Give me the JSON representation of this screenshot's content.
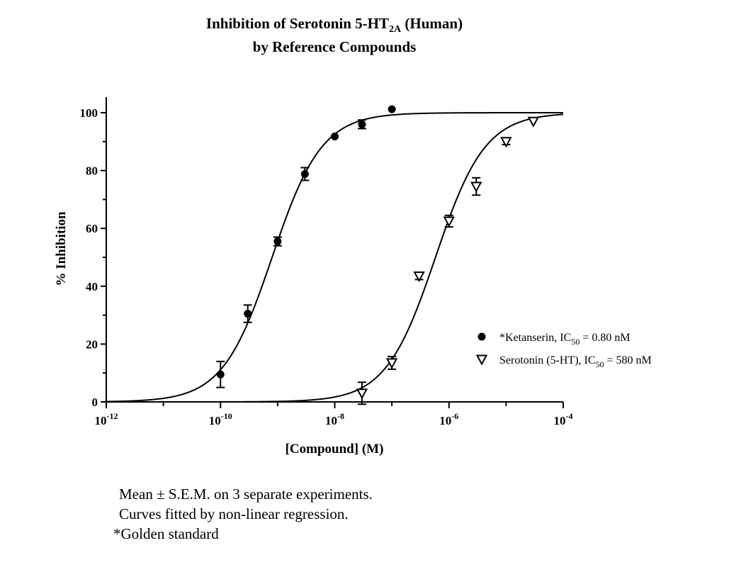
{
  "chart_data": {
    "type": "scatter",
    "title_line1_parts": [
      "Inhibition of  Serotonin 5-HT",
      "2A",
      " (Human)"
    ],
    "title_line2": "by Reference Compounds",
    "xlabel": "[Compound] (M)",
    "ylabel": "% Inhibition",
    "x_scale": "log",
    "xlim": [
      1e-12,
      0.0001
    ],
    "ylim": [
      0,
      105
    ],
    "x_ticks": [
      {
        "value": 1e-12,
        "base": "10",
        "exp": "-12"
      },
      {
        "value": 1e-10,
        "base": "10",
        "exp": "-10"
      },
      {
        "value": 1e-08,
        "base": "10",
        "exp": "-8"
      },
      {
        "value": 1e-06,
        "base": "10",
        "exp": "-6"
      },
      {
        "value": 0.0001,
        "base": "10",
        "exp": "-4"
      }
    ],
    "y_ticks": [
      0,
      20,
      40,
      60,
      80,
      100
    ],
    "grid": false,
    "legend_position": "right",
    "series": [
      {
        "label_parts": [
          "*Ketanserin, IC",
          "50",
          " = 0.80 nM"
        ],
        "marker": "filled-circle",
        "ic50": 8e-10,
        "hill": 1.0,
        "points": [
          {
            "x": 1e-10,
            "y": 9.5,
            "err": 4.5
          },
          {
            "x": 3e-10,
            "y": 30.5,
            "err": 3.0
          },
          {
            "x": 1e-09,
            "y": 55.5,
            "err": 1.5
          },
          {
            "x": 3e-09,
            "y": 78.8,
            "err": 2.2
          },
          {
            "x": 1e-08,
            "y": 91.8,
            "err": 0.8
          },
          {
            "x": 3e-08,
            "y": 96.0,
            "err": 1.5
          },
          {
            "x": 1e-07,
            "y": 101.2,
            "err": 0.5
          }
        ]
      },
      {
        "label_parts": [
          "Serotonin (5-HT), IC",
          "50",
          " = 580 nM"
        ],
        "marker": "open-triangle-down",
        "ic50": 5.8e-07,
        "hill": 1.0,
        "points": [
          {
            "x": 3e-08,
            "y": 3.0,
            "err": 3.8
          },
          {
            "x": 1e-07,
            "y": 13.5,
            "err": 2.2
          },
          {
            "x": 3e-07,
            "y": 43.5,
            "err": 1.2
          },
          {
            "x": 1e-06,
            "y": 62.5,
            "err": 2.0
          },
          {
            "x": 3e-06,
            "y": 74.5,
            "err": 3.0
          },
          {
            "x": 1e-05,
            "y": 90.0,
            "err": 1.0
          },
          {
            "x": 3e-05,
            "y": 97.0,
            "err": 0.6
          }
        ]
      }
    ]
  },
  "notes": {
    "line1": "Mean ± S.E.M. on 3 separate experiments.",
    "line2": "Curves fitted by non-linear regression.",
    "line3": "*Golden standard"
  }
}
